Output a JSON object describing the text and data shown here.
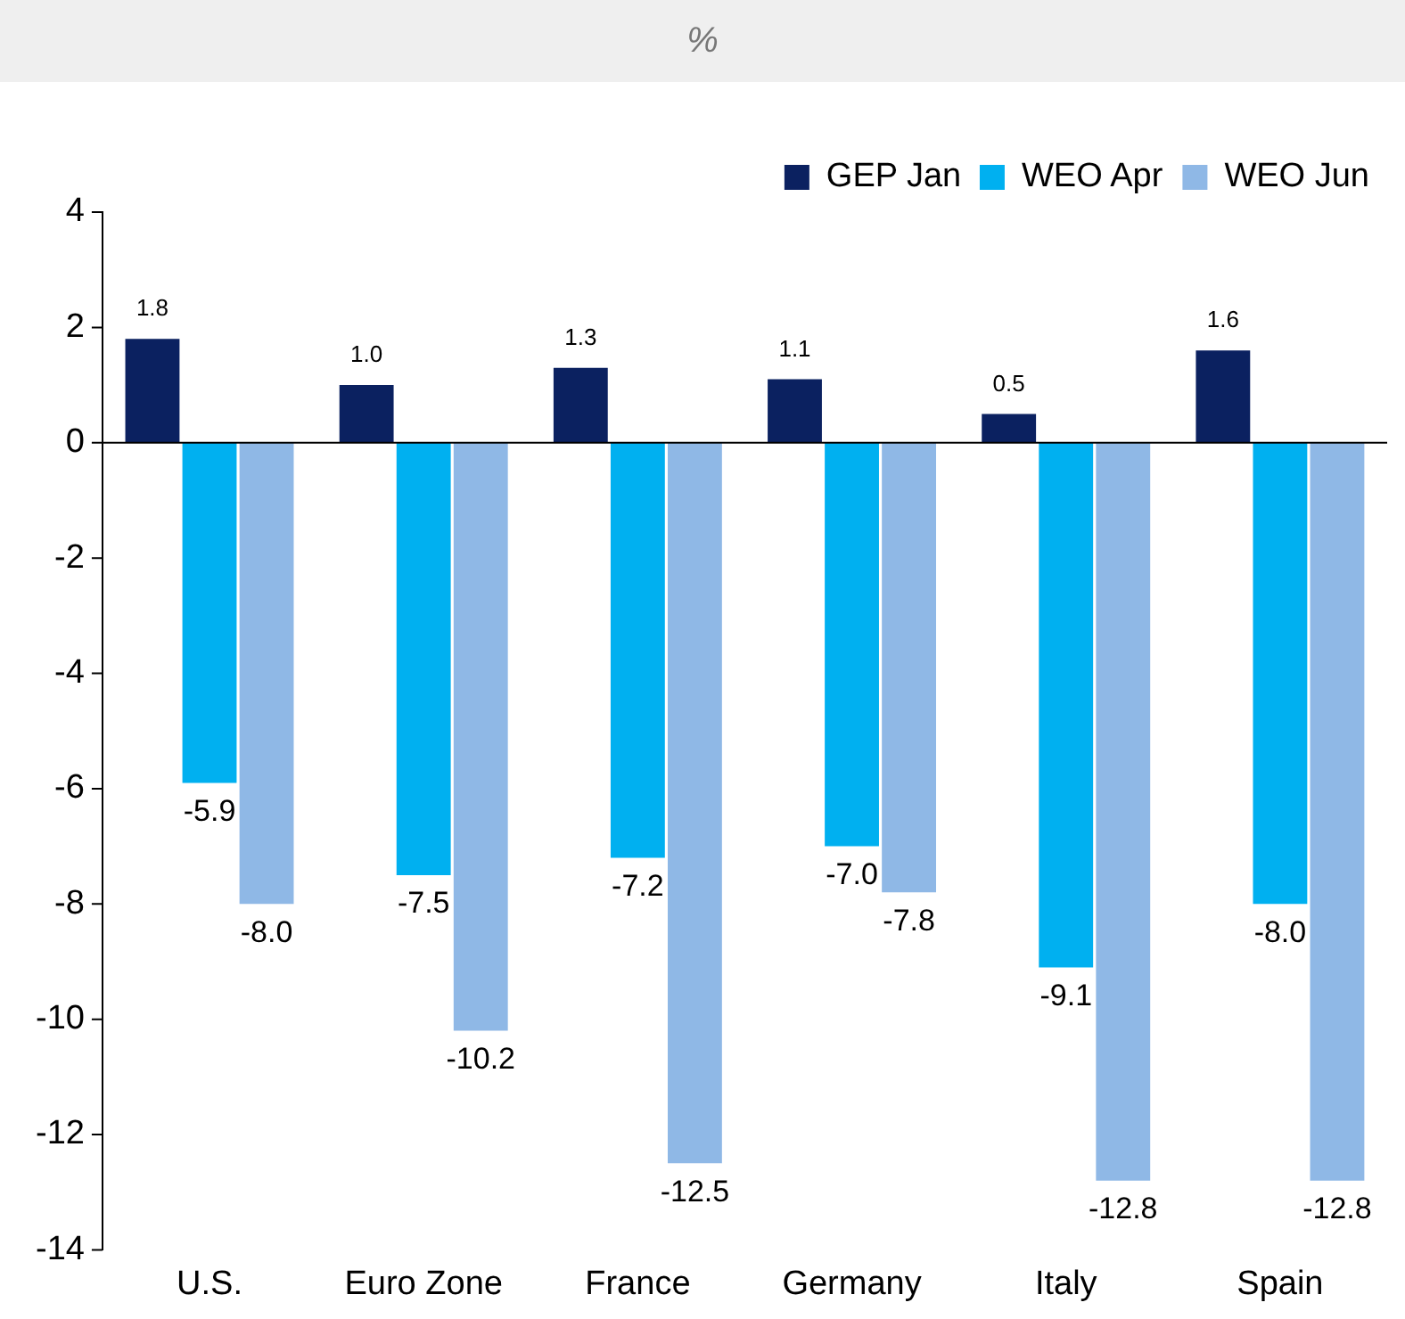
{
  "chart_data": {
    "type": "bar",
    "title": "%",
    "categories": [
      "U.S.",
      "Euro Zone",
      "France",
      "Germany",
      "Italy",
      "Spain"
    ],
    "series": [
      {
        "name": "GEP Jan",
        "color": "#0b2160",
        "values": [
          1.8,
          1.0,
          1.3,
          1.1,
          0.5,
          1.6
        ],
        "value_labels": [
          "1.8",
          "1.0",
          "1.3",
          "1.1",
          "0.5",
          "1.6"
        ]
      },
      {
        "name": "WEO Apr",
        "color": "#00b0f0",
        "values": [
          -5.9,
          -7.5,
          -7.2,
          -7.0,
          -9.1,
          -8.0
        ],
        "value_labels": [
          "-5.9",
          "-7.5",
          "-7.2",
          "-7.0",
          "-9.1",
          "-8.0"
        ]
      },
      {
        "name": "WEO Jun",
        "color": "#8fb8e6",
        "values": [
          -8.0,
          -10.2,
          -12.5,
          -7.8,
          -12.8,
          -12.8
        ],
        "value_labels": [
          "-8.0",
          "-10.2",
          "-12.5",
          "-7.8",
          "-12.8",
          "-12.8"
        ]
      }
    ],
    "ylim": [
      -14,
      4
    ],
    "yticks": [
      -14,
      -12,
      -10,
      -8,
      -6,
      -4,
      -2,
      0,
      2,
      4
    ],
    "legend": "top right"
  }
}
